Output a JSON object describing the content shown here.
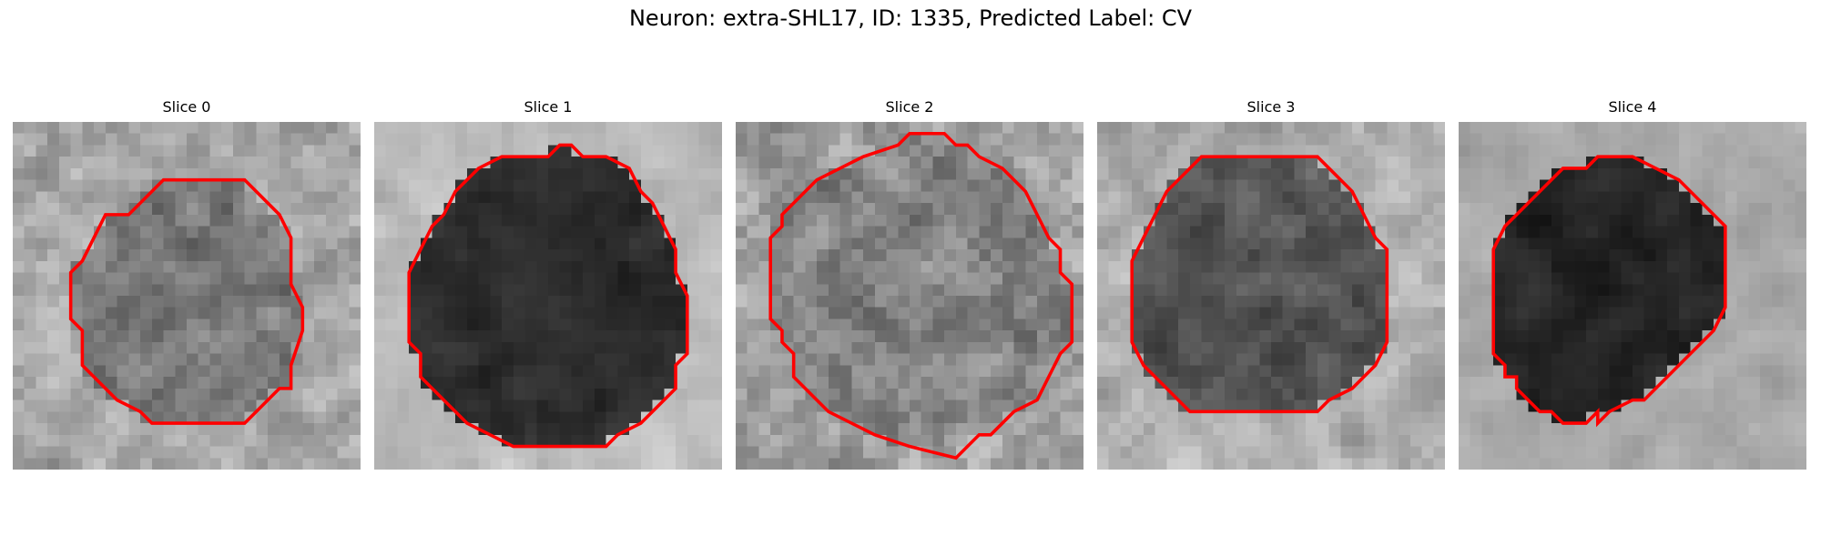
{
  "figure": {
    "title": "Neuron: extra-SHL17, ID: 1335, Predicted Label: CV"
  },
  "contour_color": "#ff0000",
  "grid_size": 30,
  "panels": [
    {
      "title": "Slice 0",
      "seed": 11,
      "interior": "mottled gray",
      "tone": {
        "bg": 168,
        "inside": 118,
        "noise": 58,
        "blur": 0.25
      },
      "contour": [
        [
          13,
          5
        ],
        [
          20,
          5
        ],
        [
          23,
          8
        ],
        [
          24,
          10
        ],
        [
          24,
          14
        ],
        [
          25,
          16
        ],
        [
          25,
          18
        ],
        [
          24,
          21
        ],
        [
          24,
          23
        ],
        [
          23,
          23
        ],
        [
          22,
          24
        ],
        [
          21,
          25
        ],
        [
          20,
          26
        ],
        [
          12,
          26
        ],
        [
          11,
          25
        ],
        [
          9,
          24
        ],
        [
          6,
          21
        ],
        [
          6,
          18
        ],
        [
          5,
          17
        ],
        [
          5,
          13
        ],
        [
          6,
          12
        ],
        [
          7,
          10
        ],
        [
          8,
          8
        ],
        [
          10,
          8
        ],
        [
          12,
          6
        ]
      ]
    },
    {
      "title": "Slice 1",
      "seed": 23,
      "interior": "dark",
      "tone": {
        "bg": 188,
        "inside": 45,
        "noise": 32,
        "blur": 0.7
      },
      "contour": [
        [
          11,
          3
        ],
        [
          15,
          3
        ],
        [
          16,
          2
        ],
        [
          17,
          2
        ],
        [
          18,
          3
        ],
        [
          20,
          3
        ],
        [
          22,
          4
        ],
        [
          23,
          6
        ],
        [
          24,
          7
        ],
        [
          25,
          9
        ],
        [
          26,
          11
        ],
        [
          26,
          13
        ],
        [
          27,
          15
        ],
        [
          27,
          20
        ],
        [
          26,
          21
        ],
        [
          26,
          23
        ],
        [
          24,
          25
        ],
        [
          23,
          26
        ],
        [
          21,
          27
        ],
        [
          20,
          28
        ],
        [
          12,
          28
        ],
        [
          10,
          27
        ],
        [
          8,
          26
        ],
        [
          6,
          24
        ],
        [
          5,
          23
        ],
        [
          4,
          22
        ],
        [
          4,
          20
        ],
        [
          3,
          19
        ],
        [
          3,
          13
        ],
        [
          4,
          11
        ],
        [
          5,
          9
        ],
        [
          6,
          8
        ],
        [
          7,
          6
        ],
        [
          9,
          4
        ]
      ]
    },
    {
      "title": "Slice 2",
      "seed": 37,
      "interior": "mottled gray",
      "tone": {
        "bg": 160,
        "inside": 130,
        "noise": 62,
        "blur": 0.2
      },
      "contour": [
        [
          14,
          2
        ],
        [
          15,
          1
        ],
        [
          18,
          1
        ],
        [
          19,
          2
        ],
        [
          20,
          2
        ],
        [
          21,
          3
        ],
        [
          23,
          4
        ],
        [
          24,
          5
        ],
        [
          25,
          6
        ],
        [
          26,
          8
        ],
        [
          27,
          10
        ],
        [
          28,
          11
        ],
        [
          28,
          13
        ],
        [
          29,
          14
        ],
        [
          29,
          19
        ],
        [
          28,
          20
        ],
        [
          27,
          22
        ],
        [
          26,
          24
        ],
        [
          24,
          25
        ],
        [
          23,
          26
        ],
        [
          22,
          27
        ],
        [
          21,
          27
        ],
        [
          20,
          28
        ],
        [
          19,
          29
        ],
        [
          15,
          28
        ],
        [
          12,
          27
        ],
        [
          10,
          26
        ],
        [
          8,
          25
        ],
        [
          7,
          24
        ],
        [
          6,
          23
        ],
        [
          5,
          22
        ],
        [
          5,
          20
        ],
        [
          4,
          19
        ],
        [
          4,
          18
        ],
        [
          3,
          17
        ],
        [
          3,
          10
        ],
        [
          4,
          9
        ],
        [
          4,
          8
        ],
        [
          5,
          7
        ],
        [
          6,
          6
        ],
        [
          7,
          5
        ],
        [
          9,
          4
        ],
        [
          11,
          3
        ]
      ]
    },
    {
      "title": "Slice 3",
      "seed": 53,
      "interior": "dark gray",
      "tone": {
        "bg": 175,
        "inside": 85,
        "noise": 55,
        "blur": 0.35
      },
      "contour": [
        [
          9,
          3
        ],
        [
          19,
          3
        ],
        [
          20,
          4
        ],
        [
          21,
          5
        ],
        [
          22,
          6
        ],
        [
          23,
          8
        ],
        [
          24,
          10
        ],
        [
          25,
          11
        ],
        [
          25,
          19
        ],
        [
          24,
          21
        ],
        [
          23,
          22
        ],
        [
          22,
          23
        ],
        [
          20,
          24
        ],
        [
          19,
          25
        ],
        [
          8,
          25
        ],
        [
          7,
          24
        ],
        [
          6,
          23
        ],
        [
          5,
          22
        ],
        [
          4,
          21
        ],
        [
          3,
          19
        ],
        [
          3,
          12
        ],
        [
          4,
          10
        ],
        [
          5,
          8
        ],
        [
          6,
          6
        ],
        [
          7,
          5
        ]
      ]
    },
    {
      "title": "Slice 4",
      "seed": 71,
      "interior": "dark",
      "tone": {
        "bg": 170,
        "inside": 35,
        "noise": 30,
        "blur": 0.5
      },
      "contour": [
        [
          9,
          4
        ],
        [
          11,
          4
        ],
        [
          12,
          3
        ],
        [
          15,
          3
        ],
        [
          19,
          5
        ],
        [
          21,
          7
        ],
        [
          22,
          8
        ],
        [
          23,
          9
        ],
        [
          23,
          16
        ],
        [
          22,
          18
        ],
        [
          21,
          19
        ],
        [
          20,
          20
        ],
        [
          19,
          21
        ],
        [
          18,
          22
        ],
        [
          17,
          23
        ],
        [
          16,
          24
        ],
        [
          15,
          24
        ],
        [
          13,
          25
        ],
        [
          12,
          26
        ],
        [
          12,
          25
        ],
        [
          11,
          26
        ],
        [
          9,
          26
        ],
        [
          8,
          25
        ],
        [
          7,
          25
        ],
        [
          6,
          24
        ],
        [
          5,
          23
        ],
        [
          5,
          22
        ],
        [
          4,
          22
        ],
        [
          4,
          21
        ],
        [
          3,
          20
        ],
        [
          3,
          19
        ],
        [
          3,
          11
        ],
        [
          4,
          9
        ],
        [
          5,
          8
        ],
        [
          6,
          7
        ],
        [
          7,
          6
        ],
        [
          8,
          5
        ]
      ]
    }
  ]
}
